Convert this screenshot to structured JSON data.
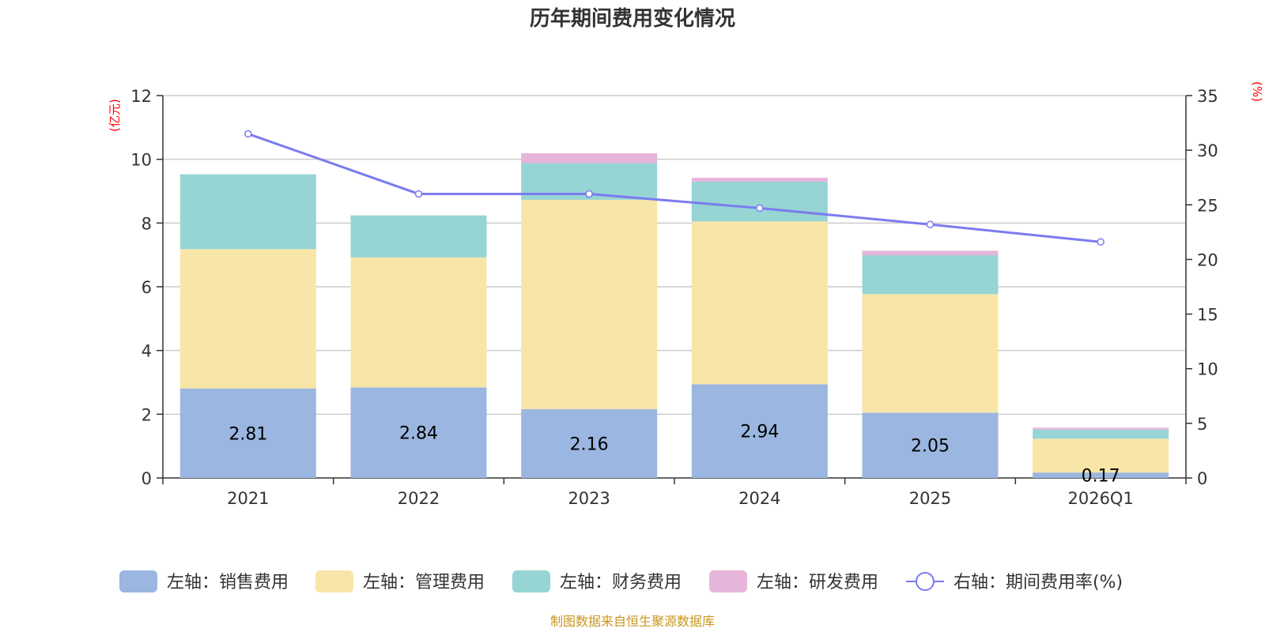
{
  "chart_data": {
    "type": "bar",
    "stacked": true,
    "title": "历年期间费用变化情况",
    "categories": [
      "2021",
      "2022",
      "2023",
      "2024",
      "2025",
      "2026Q1"
    ],
    "series": [
      {
        "name": "左轴：销售费用",
        "axis": "left",
        "color": "#9bb6e0",
        "values": [
          2.81,
          2.84,
          2.16,
          2.94,
          2.05,
          0.17
        ],
        "labels": [
          "2.81",
          "2.84",
          "2.16",
          "2.94",
          "2.05",
          "0.17"
        ]
      },
      {
        "name": "左轴：管理费用",
        "axis": "left",
        "color": "#f8e6a8",
        "values": [
          4.37,
          4.08,
          6.57,
          5.11,
          3.72,
          1.06
        ]
      },
      {
        "name": "左轴：财务费用",
        "axis": "left",
        "color": "#97d4d4",
        "values": [
          2.35,
          1.32,
          1.15,
          1.25,
          1.22,
          0.29
        ]
      },
      {
        "name": "左轴：研发费用",
        "axis": "left",
        "color": "#e6b5d9",
        "values": [
          0.0,
          0.0,
          0.31,
          0.12,
          0.14,
          0.06
        ]
      }
    ],
    "line": {
      "name": "右轴：期间费用率(%)",
      "axis": "right",
      "color": "#7b7bef",
      "values": [
        31.5,
        26.0,
        26.0,
        24.7,
        23.2,
        21.6
      ]
    },
    "left_axis": {
      "unit": "(亿元)",
      "min": 0,
      "max": 12,
      "ticks": [
        "0",
        "2",
        "4",
        "6",
        "8",
        "10",
        "12"
      ]
    },
    "right_axis": {
      "unit": "(%)",
      "min": 0,
      "max": 35,
      "ticks": [
        "0",
        "5",
        "10",
        "15",
        "20",
        "25",
        "30",
        "35"
      ]
    },
    "grid": true,
    "legend_position": "bottom",
    "source": "制图数据来自恒生聚源数据库"
  }
}
